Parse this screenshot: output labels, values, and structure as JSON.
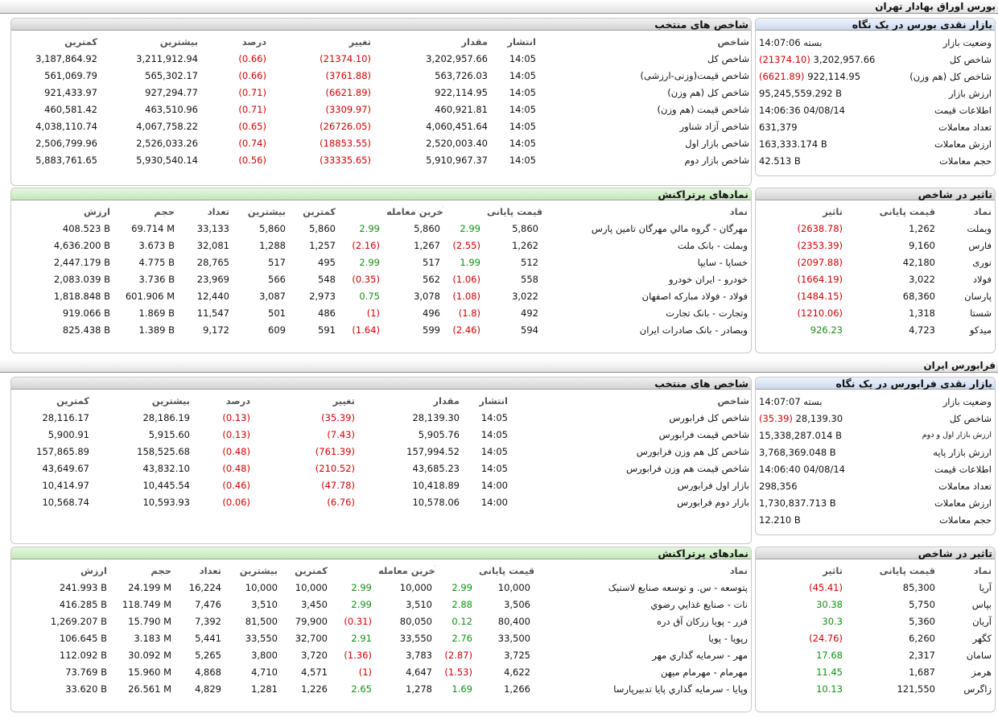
{
  "tse": {
    "title": "بورس اوراق بهادار تهران",
    "glance": {
      "title": "بازار نقدی بورس در یک نگاه",
      "rows": [
        {
          "label": "وضعیت بازار",
          "value": "بسته 14:07:06",
          "change": ""
        },
        {
          "label": "شاخص کل",
          "value": "3,202,957.66",
          "change": "(21374.10)"
        },
        {
          "label": "شاخص کل (هم وزن)",
          "value": "922,114.95",
          "change": "(6621.89)"
        },
        {
          "label": "ارزش بازار",
          "value": "95,245,559.292 B",
          "change": ""
        },
        {
          "label": "اطلاعات قیمت",
          "value": "14:06:36 04/08/14",
          "change": ""
        },
        {
          "label": "تعداد معاملات",
          "value": "631,379",
          "change": ""
        },
        {
          "label": "ارزش معاملات",
          "value": "163,333.174 B",
          "change": ""
        },
        {
          "label": "حجم معاملات",
          "value": "42.513 B",
          "change": ""
        }
      ]
    },
    "indices": {
      "title": "شاخص های منتخب",
      "headers": [
        "شاخص",
        "انتشار",
        "مقدار",
        "تغییر",
        "درصد",
        "بیشترین",
        "کمترین"
      ],
      "rows": [
        [
          "شاخص کل",
          "14:05",
          "3,202,957.66",
          "(21374.10)",
          "(0.66)",
          "3,211,912.94",
          "3,187,864.92"
        ],
        [
          "شاخص قیمت(وزنی-ارزشی)",
          "14:05",
          "563,726.03",
          "(3761.88)",
          "(0.66)",
          "565,302.17",
          "561,069.79"
        ],
        [
          "شاخص کل (هم وزن)",
          "14:05",
          "922,114.95",
          "(6621.89)",
          "(0.71)",
          "927,294.77",
          "921,433.97"
        ],
        [
          "شاخص قیمت (هم وزن)",
          "14:05",
          "460,921.81",
          "(3309.97)",
          "(0.71)",
          "463,510.96",
          "460,581.42"
        ],
        [
          "شاخص آزاد شناور",
          "14:05",
          "4,060,451.64",
          "(26726.05)",
          "(0.65)",
          "4,067,758.22",
          "4,038,110.74"
        ],
        [
          "شاخص بازار اول",
          "14:05",
          "2,520,003.40",
          "(18853.55)",
          "(0.74)",
          "2,526,033.26",
          "2,506,799.96"
        ],
        [
          "شاخص بازار دوم",
          "14:05",
          "5,910,967.37",
          "(33335.65)",
          "(0.56)",
          "5,930,540.14",
          "5,883,761.65"
        ]
      ]
    },
    "impact": {
      "title": "تاثیر در شاخص",
      "headers": [
        "نماد",
        "قیمت پایانی",
        "تاثیر"
      ],
      "rows": [
        [
          "وبملت",
          "1,262",
          "(2638.78)"
        ],
        [
          "فارس",
          "9,160",
          "(2353.39)"
        ],
        [
          "نوری",
          "42,180",
          "(2097.88)"
        ],
        [
          "فولاد",
          "3,022",
          "(1664.19)"
        ],
        [
          "پارسان",
          "68,360",
          "(1484.15)"
        ],
        [
          "شستا",
          "1,318",
          "(1210.06)"
        ],
        [
          "میدکو",
          "4,723",
          "926.23"
        ]
      ]
    },
    "active": {
      "title": "نمادهای پرتراکنش",
      "headers": [
        "نماد",
        "قیمت پایانی",
        "",
        "آخرین معامله",
        "",
        "کمترین",
        "بیشترین",
        "تعداد",
        "حجم",
        "ارزش"
      ],
      "rows": [
        [
          "مهرگان - گروه مالي مهرگان تامين پارس",
          "5,860",
          "2.99",
          "5,860",
          "2.99",
          "5,860",
          "5,860",
          "33,133",
          "69.714 M",
          "408.523 B"
        ],
        [
          "وبملت - بانک ملت",
          "1,262",
          "(2.55)",
          "1,267",
          "(2.16)",
          "1,257",
          "1,288",
          "32,081",
          "3.673 B",
          "4,636.200 B"
        ],
        [
          "خساپا - سايپا",
          "512",
          "1.99",
          "517",
          "2.99",
          "495",
          "517",
          "28,765",
          "4.775 B",
          "2,447.179 B"
        ],
        [
          "خودرو - ايران خودرو",
          "558",
          "(1.06)",
          "562",
          "(0.35)",
          "548",
          "566",
          "23,969",
          "3.736 B",
          "2,083.039 B"
        ],
        [
          "فولاد - فولاد مبارکه اصفهان",
          "3,022",
          "(1.08)",
          "3,078",
          "0.75",
          "2,973",
          "3,087",
          "12,440",
          "601.906 M",
          "1,818.848 B"
        ],
        [
          "وتجارت - بانک تجارت",
          "492",
          "(1.8)",
          "496",
          "(1)",
          "486",
          "501",
          "11,547",
          "1.869 B",
          "919.066 B"
        ],
        [
          "وبصادر - بانک صادرات ايران",
          "594",
          "(2.46)",
          "599",
          "(1.64)",
          "591",
          "609",
          "9,172",
          "1.389 B",
          "825.438 B"
        ]
      ]
    }
  },
  "ifb": {
    "title": "فرابورس ایران",
    "glance": {
      "title": "بازار نقدی فرابورس در یک نگاه",
      "rows": [
        {
          "label": "وضعیت بازار",
          "value": "بسته 14:07:07",
          "change": ""
        },
        {
          "label": "شاخص کل",
          "value": "28,139.30",
          "change": "(35.39)"
        },
        {
          "label": "ارزش بازار اول و دوم",
          "value": "15,338,287.014 B",
          "change": ""
        },
        {
          "label": "ارزش بازار پایه",
          "value": "3,768,369.048 B",
          "change": ""
        },
        {
          "label": "اطلاعات قیمت",
          "value": "14:06:40 04/08/14",
          "change": ""
        },
        {
          "label": "تعداد معاملات",
          "value": "298,356",
          "change": ""
        },
        {
          "label": "ارزش معاملات",
          "value": "1,730,837.713 B",
          "change": ""
        },
        {
          "label": "حجم معاملات",
          "value": "12.210 B",
          "change": ""
        }
      ]
    },
    "indices": {
      "title": "شاخص های منتخب",
      "headers": [
        "شاخص",
        "انتشار",
        "مقدار",
        "تغییر",
        "درصد",
        "بیشترین",
        "کمترین"
      ],
      "rows": [
        [
          "شاخص کل فرابورس",
          "14:05",
          "28,139.30",
          "(35.39)",
          "(0.13)",
          "28,186.19",
          "28,116.17"
        ],
        [
          "شاخص قیمت فرابورس",
          "14:05",
          "5,905.76",
          "(7.43)",
          "(0.13)",
          "5,915.60",
          "5,900.91"
        ],
        [
          "شاخص کل هم وزن فرابورس",
          "14:05",
          "157,994.52",
          "(761.39)",
          "(0.48)",
          "158,525.68",
          "157,865.89"
        ],
        [
          "شاخص قیمت هم وزن فرابورس",
          "14:05",
          "43,685.23",
          "(210.52)",
          "(0.48)",
          "43,832.10",
          "43,649.67"
        ],
        [
          "بازار اول فرابورس",
          "14:00",
          "10,418.89",
          "(47.78)",
          "(0.46)",
          "10,445.54",
          "10,414.97"
        ],
        [
          "بازار دوم فرابورس",
          "14:00",
          "10,578.06",
          "(6.76)",
          "(0.06)",
          "10,593.93",
          "10,568.74"
        ]
      ]
    },
    "impact": {
      "title": "تاثیر در شاخص",
      "headers": [
        "نماد",
        "قیمت پایانی",
        "تاثیر"
      ],
      "rows": [
        [
          "آريا",
          "85,300",
          "(45.41)"
        ],
        [
          "بپاس",
          "5,750",
          "30.38"
        ],
        [
          "آريان",
          "5,360",
          "30.3"
        ],
        [
          "كگهر",
          "6,260",
          "(24.76)"
        ],
        [
          "سامان",
          "2,317",
          "17.68"
        ],
        [
          "هرمز",
          "1,687",
          "11.45"
        ],
        [
          "زاگرس",
          "121,550",
          "10.13"
        ]
      ]
    },
    "active": {
      "title": "نمادهای پرتراکنش",
      "headers": [
        "نماد",
        "قیمت پایانی",
        "",
        "آخرین معامله",
        "",
        "کمترین",
        "بیشترین",
        "تعداد",
        "حجم",
        "ارزش"
      ],
      "rows": [
        [
          "پتوسعه - س. و توسعه صنايع لاستيک",
          "10,000",
          "2.99",
          "10,000",
          "2.99",
          "10,000",
          "10,000",
          "16,224",
          "24.199 M",
          "241.993 B"
        ],
        [
          "نات - صنايع غذايي رضوي",
          "3,506",
          "2.88",
          "3,510",
          "2.99",
          "3,450",
          "3,510",
          "7,476",
          "118.749 M",
          "416.285 B"
        ],
        [
          "فزر - پويا زركان آق دره",
          "80,400",
          "0.12",
          "80,050",
          "(0.31)",
          "79,900",
          "81,500",
          "7,392",
          "15.790 M",
          "1,269.207 B"
        ],
        [
          "رپويا - پويا",
          "33,500",
          "2.76",
          "33,550",
          "2.91",
          "32,700",
          "33,550",
          "5,441",
          "3.183 M",
          "106.645 B"
        ],
        [
          "مهر - سرمايه گذاري مهر",
          "3,725",
          "(2.87)",
          "3,783",
          "(1.36)",
          "3,720",
          "3,800",
          "5,265",
          "30.092 M",
          "112.092 B"
        ],
        [
          "مهرمام - مهرمام ميهن",
          "4,622",
          "(1.53)",
          "4,647",
          "(1)",
          "4,571",
          "4,710",
          "4,868",
          "15.960 M",
          "73.769 B"
        ],
        [
          "وپايا - سرمايه گذاري پايا تدبيرپارسا",
          "1,266",
          "1.69",
          "1,278",
          "2.65",
          "1,226",
          "1,281",
          "4,829",
          "26.561 M",
          "33.620 B"
        ]
      ]
    }
  },
  "colors": {
    "negative": "#d00000",
    "positive": "#119011"
  }
}
